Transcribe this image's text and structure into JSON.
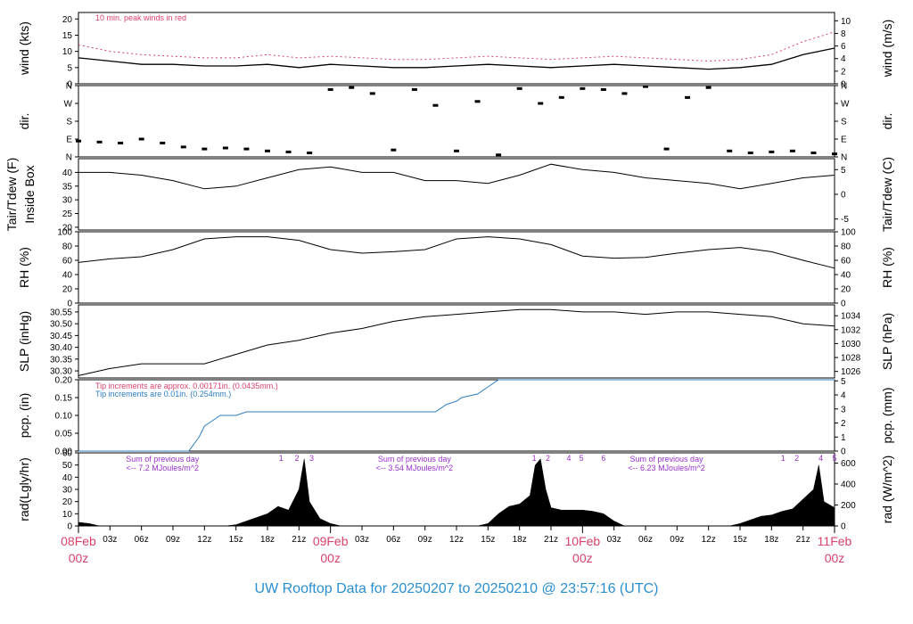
{
  "title": "UW Rooftop Data for 20250207  to  20250210 @ 23:57:16  (UTC)",
  "x_axis": {
    "hour_ticks": [
      "03z",
      "06z",
      "09z",
      "12z",
      "15z",
      "18z",
      "21z",
      "03z",
      "06z",
      "09z",
      "12z",
      "15z",
      "18z",
      "21z",
      "03z",
      "06z",
      "09z",
      "12z",
      "15z",
      "18z",
      "21z"
    ],
    "date_labels": [
      {
        "date": "08Feb",
        "time": "00z",
        "hour": 0
      },
      {
        "date": "09Feb",
        "time": "00z",
        "hour": 24
      },
      {
        "date": "10Feb",
        "time": "00z",
        "hour": 48
      },
      {
        "date": "11Feb",
        "time": "00z",
        "hour": 72
      }
    ]
  },
  "colors": {
    "red": "#d9426b",
    "blue": "#2d7dc1",
    "purple": "#9b30c8",
    "title": "#2a8fd0"
  },
  "chart_data": [
    {
      "type": "line",
      "ylabel": "wind (kts)",
      "ylabel_right": "wind (m/s)",
      "yticks": [
        "0",
        "5",
        "10",
        "15",
        "20"
      ],
      "yticks_right": [
        "0",
        "2",
        "4",
        "6",
        "8",
        "10"
      ],
      "ylim": [
        0,
        22
      ],
      "annotation": "10 min. peak winds in red",
      "series": [
        {
          "x": [
            0,
            3,
            6,
            9,
            12,
            15,
            18,
            21,
            24,
            27,
            30,
            33,
            36,
            39,
            42,
            45,
            48,
            51,
            54,
            57,
            60,
            63,
            66,
            69,
            72
          ],
          "values": [
            8,
            7,
            6,
            6,
            5.5,
            5.5,
            6,
            5,
            6,
            5.5,
            5,
            5,
            5.5,
            6,
            5.5,
            5,
            5.5,
            6,
            5.5,
            5,
            4.5,
            5,
            6,
            9,
            11
          ]
        },
        {
          "x": [
            0,
            3,
            6,
            9,
            12,
            15,
            18,
            21,
            24,
            27,
            30,
            33,
            36,
            39,
            42,
            45,
            48,
            51,
            54,
            57,
            60,
            63,
            66,
            69,
            72
          ],
          "values": [
            12,
            10,
            9,
            8.5,
            8,
            8,
            9,
            8,
            8.5,
            8,
            7.5,
            7.5,
            8,
            8.5,
            8,
            7.5,
            8,
            8.5,
            8,
            7.5,
            7,
            7.5,
            9,
            13,
            16
          ]
        }
      ]
    },
    {
      "type": "scatter",
      "ylabel": "dir.",
      "ylabel_right": "dir.",
      "yticks": [
        "N",
        "E",
        "S",
        "W",
        "N"
      ],
      "yticks_right": [
        "N",
        "E",
        "S",
        "W",
        "N"
      ],
      "ylim": [
        0,
        360
      ],
      "series": [
        {
          "x": [
            0,
            2,
            4,
            6,
            8,
            10,
            12,
            14,
            16,
            18,
            20,
            22,
            24,
            26,
            28,
            30,
            32,
            34,
            36,
            38,
            40,
            42,
            44,
            46,
            48,
            50,
            52,
            54,
            56,
            58,
            60,
            62,
            64,
            66,
            68,
            70,
            72
          ],
          "values": [
            80,
            75,
            70,
            90,
            70,
            50,
            40,
            45,
            40,
            30,
            25,
            20,
            340,
            350,
            320,
            35,
            340,
            260,
            30,
            280,
            10,
            345,
            270,
            300,
            345,
            340,
            320,
            355,
            40,
            300,
            350,
            30,
            20,
            25,
            30,
            20,
            15
          ]
        }
      ]
    },
    {
      "type": "line",
      "ylabel": "Tair/Tdew (F)\nInside Box",
      "ylabel_right": "Tair/Tdew (C)",
      "yticks": [
        "20",
        "25",
        "30",
        "35",
        "40"
      ],
      "yticks_right": [
        "-5",
        "0",
        "5"
      ],
      "ylim": [
        19,
        45
      ],
      "series": [
        {
          "x": [
            0,
            3,
            6,
            9,
            12,
            15,
            18,
            21,
            24,
            27,
            30,
            33,
            36,
            39,
            42,
            45,
            48,
            51,
            54,
            57,
            60,
            63,
            66,
            69,
            72
          ],
          "values": [
            40,
            40,
            39,
            37,
            34,
            35,
            38,
            41,
            42,
            40,
            40,
            37,
            37,
            36,
            39,
            43,
            41,
            40,
            38,
            37,
            36,
            34,
            36,
            38,
            39
          ]
        }
      ]
    },
    {
      "type": "line",
      "ylabel": "RH (%)",
      "ylabel_right": "RH (%)",
      "yticks": [
        "0",
        "20",
        "40",
        "60",
        "80",
        "100"
      ],
      "yticks_right": [
        "0",
        "20",
        "40",
        "60",
        "80",
        "100"
      ],
      "ylim": [
        0,
        100
      ],
      "series": [
        {
          "x": [
            0,
            3,
            6,
            9,
            12,
            15,
            18,
            21,
            24,
            27,
            30,
            33,
            36,
            39,
            42,
            45,
            48,
            51,
            54,
            57,
            60,
            63,
            66,
            69,
            72
          ],
          "values": [
            57,
            62,
            65,
            75,
            90,
            93,
            93,
            88,
            75,
            70,
            72,
            75,
            90,
            93,
            90,
            82,
            66,
            63,
            64,
            70,
            75,
            78,
            72,
            60,
            49
          ]
        }
      ]
    },
    {
      "type": "line",
      "ylabel": "SLP (inHg)",
      "ylabel_right": "SLP (hPa)",
      "yticks": [
        "30.30",
        "30.35",
        "30.40",
        "30.45",
        "30.50",
        "30.55"
      ],
      "yticks_right": [
        "1026",
        "1028",
        "1030",
        "1032",
        "1034"
      ],
      "ylim": [
        30.27,
        30.58
      ],
      "series": [
        {
          "x": [
            0,
            3,
            6,
            9,
            12,
            15,
            18,
            21,
            24,
            27,
            30,
            33,
            36,
            39,
            42,
            45,
            48,
            51,
            54,
            57,
            60,
            63,
            66,
            69,
            72
          ],
          "values": [
            30.28,
            30.31,
            30.33,
            30.33,
            30.33,
            30.37,
            30.41,
            30.43,
            30.46,
            30.48,
            30.51,
            30.53,
            30.54,
            30.55,
            30.56,
            30.56,
            30.55,
            30.55,
            30.54,
            30.55,
            30.55,
            30.54,
            30.53,
            30.5,
            30.49
          ]
        }
      ]
    },
    {
      "type": "line",
      "ylabel": "pcp. (in)",
      "ylabel_right": "pcp. (mm)",
      "yticks": [
        "0.00",
        "0.05",
        "0.10",
        "0.15",
        "0.20"
      ],
      "yticks_right": [
        "0",
        "1",
        "2",
        "3",
        "4",
        "5"
      ],
      "ylim": [
        0,
        0.2
      ],
      "annotations": [
        "Tip increments are approx. 0.00171in. (0.0435mm.)",
        "Tip increments are 0.01in. (0.254mm.)"
      ],
      "series": [
        {
          "x": [
            0,
            10.5,
            11,
            11.5,
            12,
            12.5,
            13,
            13.5,
            15,
            16,
            34,
            35,
            36,
            36.5,
            38,
            39,
            40,
            41,
            72
          ],
          "values": [
            0,
            0,
            0.02,
            0.04,
            0.07,
            0.08,
            0.09,
            0.1,
            0.1,
            0.11,
            0.11,
            0.13,
            0.14,
            0.15,
            0.16,
            0.18,
            0.2,
            0.2,
            0.2
          ]
        }
      ]
    },
    {
      "type": "area",
      "ylabel": "rad(Lgly/hr)",
      "ylabel_right": "rad (W/m^2)",
      "yticks": [
        "0",
        "10",
        "20",
        "30",
        "40",
        "50",
        "60"
      ],
      "yticks_right": [
        "0",
        "200",
        "400",
        "600"
      ],
      "ylim": [
        0,
        60
      ],
      "annotations": [
        {
          "hour": 8,
          "line1": "Sum of previous day",
          "line2": "<-- 7.2 MJoules/m^2"
        },
        {
          "hour": 32,
          "line1": "Sum of previous day",
          "line2": "<-- 3.54 MJoules/m^2"
        },
        {
          "hour": 56,
          "line1": "Sum of previous day",
          "line2": "<-- 6.23 MJoules/m^2"
        }
      ],
      "markers": [
        {
          "hour": 19.3,
          "label": "1"
        },
        {
          "hour": 20.8,
          "label": "2"
        },
        {
          "hour": 22.2,
          "label": "3"
        },
        {
          "hour": 43.4,
          "label": "1"
        },
        {
          "hour": 44.7,
          "label": "2"
        },
        {
          "hour": 46.7,
          "label": "4"
        },
        {
          "hour": 47.9,
          "label": "5"
        },
        {
          "hour": 50.0,
          "label": "6"
        },
        {
          "hour": 67.1,
          "label": "1"
        },
        {
          "hour": 68.4,
          "label": "2"
        },
        {
          "hour": 70.7,
          "label": "4"
        },
        {
          "hour": 72,
          "label": "5"
        }
      ],
      "series": [
        {
          "x": [
            0,
            1,
            2,
            14,
            15,
            16,
            17,
            18,
            19,
            20,
            21,
            21.5,
            22,
            23,
            24,
            25,
            38,
            39,
            40,
            41,
            42,
            43,
            43.5,
            44,
            44.5,
            45,
            46,
            47,
            48,
            49,
            50,
            51,
            52,
            62,
            63,
            64,
            65,
            66,
            67,
            68,
            69,
            70,
            70.5,
            71,
            72
          ],
          "values": [
            3,
            2,
            0,
            0,
            1,
            4,
            7,
            10,
            16,
            13,
            30,
            55,
            20,
            6,
            2,
            0,
            0,
            2,
            10,
            16,
            18,
            25,
            50,
            55,
            30,
            15,
            13,
            13,
            13,
            12,
            10,
            4,
            0,
            0,
            2,
            5,
            8,
            9,
            12,
            14,
            22,
            30,
            50,
            20,
            15
          ]
        }
      ]
    }
  ]
}
